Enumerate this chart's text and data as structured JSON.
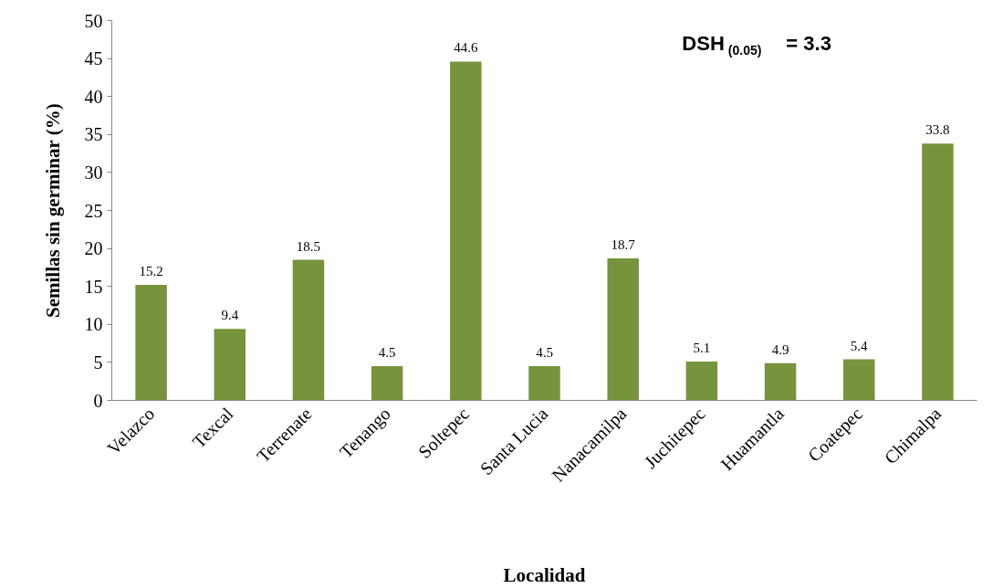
{
  "chart_data": {
    "type": "bar",
    "xlabel": "Localidad",
    "ylabel": "Semillas sin germinar (%)",
    "categories": [
      "Velazco",
      "Texcal",
      "Terrenate",
      "Tenango",
      "Soltepec",
      "Santa Lucia",
      "Nanacamilpa",
      "Juchitepec",
      "Huamantla",
      "Coatepec",
      "Chimalpa"
    ],
    "values": [
      15.2,
      9.4,
      18.5,
      4.5,
      44.6,
      4.5,
      18.7,
      5.1,
      4.9,
      5.4,
      33.8
    ],
    "color": "#77933c",
    "ylim": [
      0,
      50
    ],
    "yticks": [
      0,
      5,
      10,
      15,
      20,
      25,
      30,
      35,
      40,
      45,
      50
    ],
    "data_labels": true,
    "grid": false,
    "annotations": [
      "DSH$_{(0.05)}$ = 3.3"
    ]
  }
}
